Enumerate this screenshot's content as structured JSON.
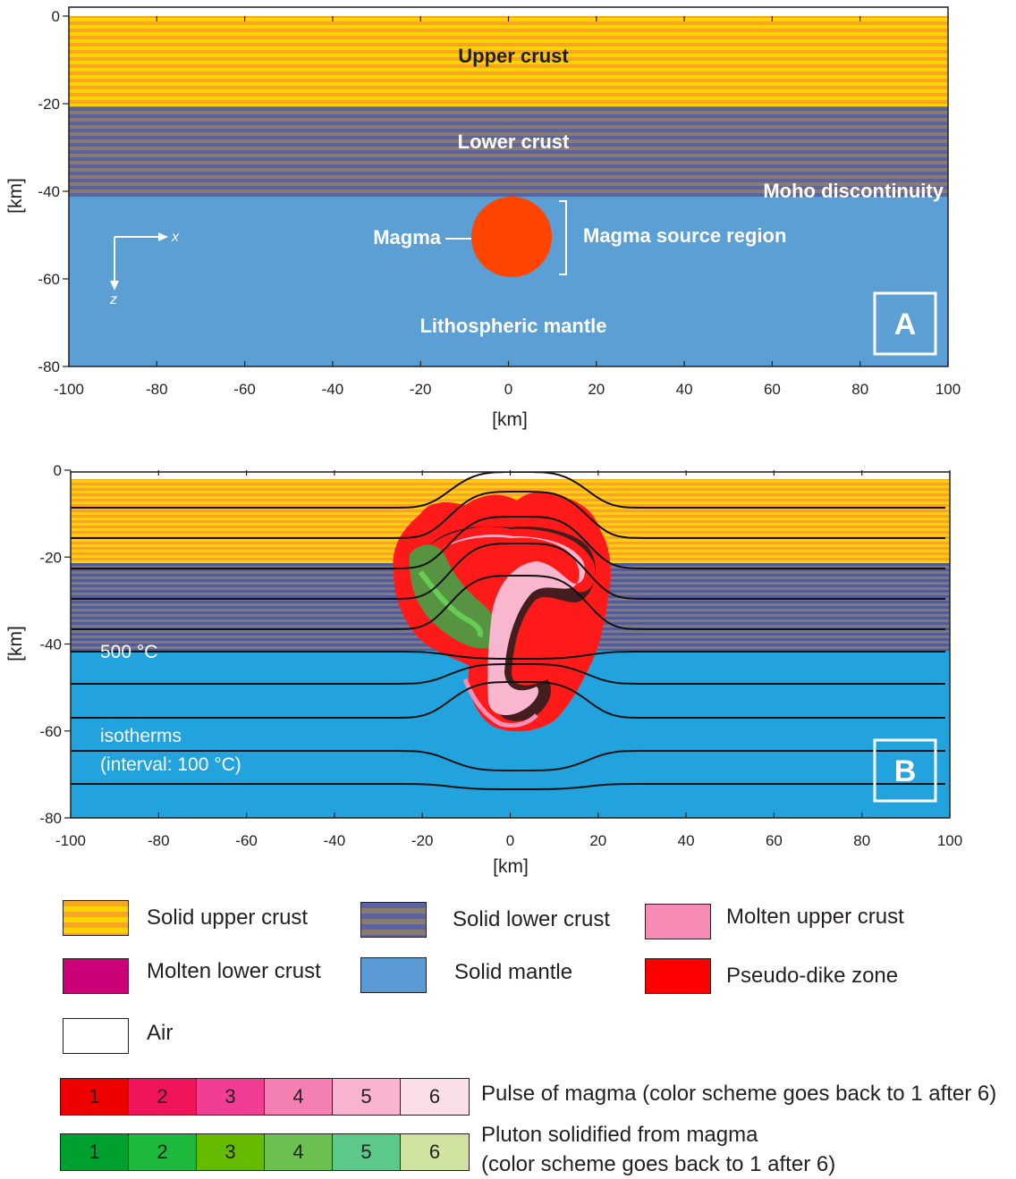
{
  "panel_a": {
    "layers": {
      "upper_crust": "Upper crust",
      "lower_crust": "Lower crust",
      "moho": "Moho discontinuity",
      "mantle": "Lithospheric mantle"
    },
    "magma_label": "Magma",
    "source_region_label": "Magma source region",
    "axis_x_arrow": "x",
    "axis_z_arrow": "z",
    "panel_letter": "A",
    "y_ticks": [
      "0",
      "-20",
      "-40",
      "-60",
      "-80"
    ],
    "x_ticks": [
      "-100",
      "-80",
      "-60",
      "-40",
      "-20",
      "0",
      "20",
      "40",
      "60",
      "80",
      "100"
    ],
    "xlabel": "[km]",
    "ylabel": "[km]"
  },
  "panel_b": {
    "isotherm_label": "500 °C",
    "isotherms_title": "isotherms",
    "isotherms_interval": "(interval: 100 °C)",
    "panel_letter": "B",
    "y_ticks": [
      "0",
      "-20",
      "-40",
      "-60",
      "-80"
    ],
    "x_ticks": [
      "-100",
      "-80",
      "-60",
      "-40",
      "-20",
      "0",
      "20",
      "40",
      "60",
      "80",
      "100"
    ],
    "xlabel": "[km]",
    "ylabel": "[km]"
  },
  "legend": {
    "items": [
      {
        "label": "Solid upper crust",
        "pattern": "upper-stripes"
      },
      {
        "label": "Solid lower crust",
        "pattern": "lower-stripes"
      },
      {
        "label": "Molten upper crust",
        "color": "#f68bb6"
      },
      {
        "label": "Molten lower crust",
        "color": "#cc0077"
      },
      {
        "label": "Solid mantle",
        "color": "#5b9bd5"
      },
      {
        "label": "Pseudo-dike zone",
        "color": "#ff0000"
      },
      {
        "label": "Air",
        "color": "#ffffff"
      }
    ]
  },
  "pulse_scale": {
    "label": "Pulse of magma (color scheme goes back to 1 after 6)",
    "cells": [
      {
        "n": "1",
        "color": "#ee0000"
      },
      {
        "n": "2",
        "color": "#f0145a"
      },
      {
        "n": "3",
        "color": "#f23d95"
      },
      {
        "n": "4",
        "color": "#f47fb3"
      },
      {
        "n": "5",
        "color": "#f8b4d1"
      },
      {
        "n": "6",
        "color": "#fbdfe8"
      }
    ]
  },
  "pluton_scale": {
    "label_line1": "Pluton solidified from magma",
    "label_line2": "(color scheme goes back to 1 after 6)",
    "cells": [
      {
        "n": "1",
        "color": "#00a030"
      },
      {
        "n": "2",
        "color": "#1eb83c"
      },
      {
        "n": "3",
        "color": "#66bb00"
      },
      {
        "n": "4",
        "color": "#6cc050"
      },
      {
        "n": "5",
        "color": "#5cc98a"
      },
      {
        "n": "6",
        "color": "#d0e2a0"
      }
    ]
  },
  "colors": {
    "upper_crust_a": "#f6a623",
    "upper_crust_b": "#fbd400",
    "lower_crust_a": "#5b64a0",
    "lower_crust_b": "#8a7c70",
    "mantle_a": "#5b9fd4",
    "mantle_b": "#22a3de",
    "magma": "#ff4500",
    "pseudo_dike": "#ff1a1a"
  }
}
